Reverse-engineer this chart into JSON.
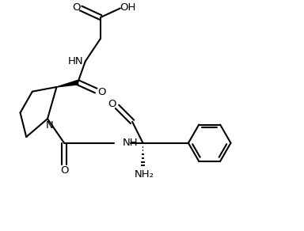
{
  "background_color": "#ffffff",
  "line_color": "#000000",
  "line_width": 1.5,
  "font_size": 9.5,
  "figsize": [
    3.84,
    2.92
  ],
  "dpi": 100,
  "xlim": [
    0,
    10
  ],
  "ylim": [
    0,
    7.5
  ]
}
